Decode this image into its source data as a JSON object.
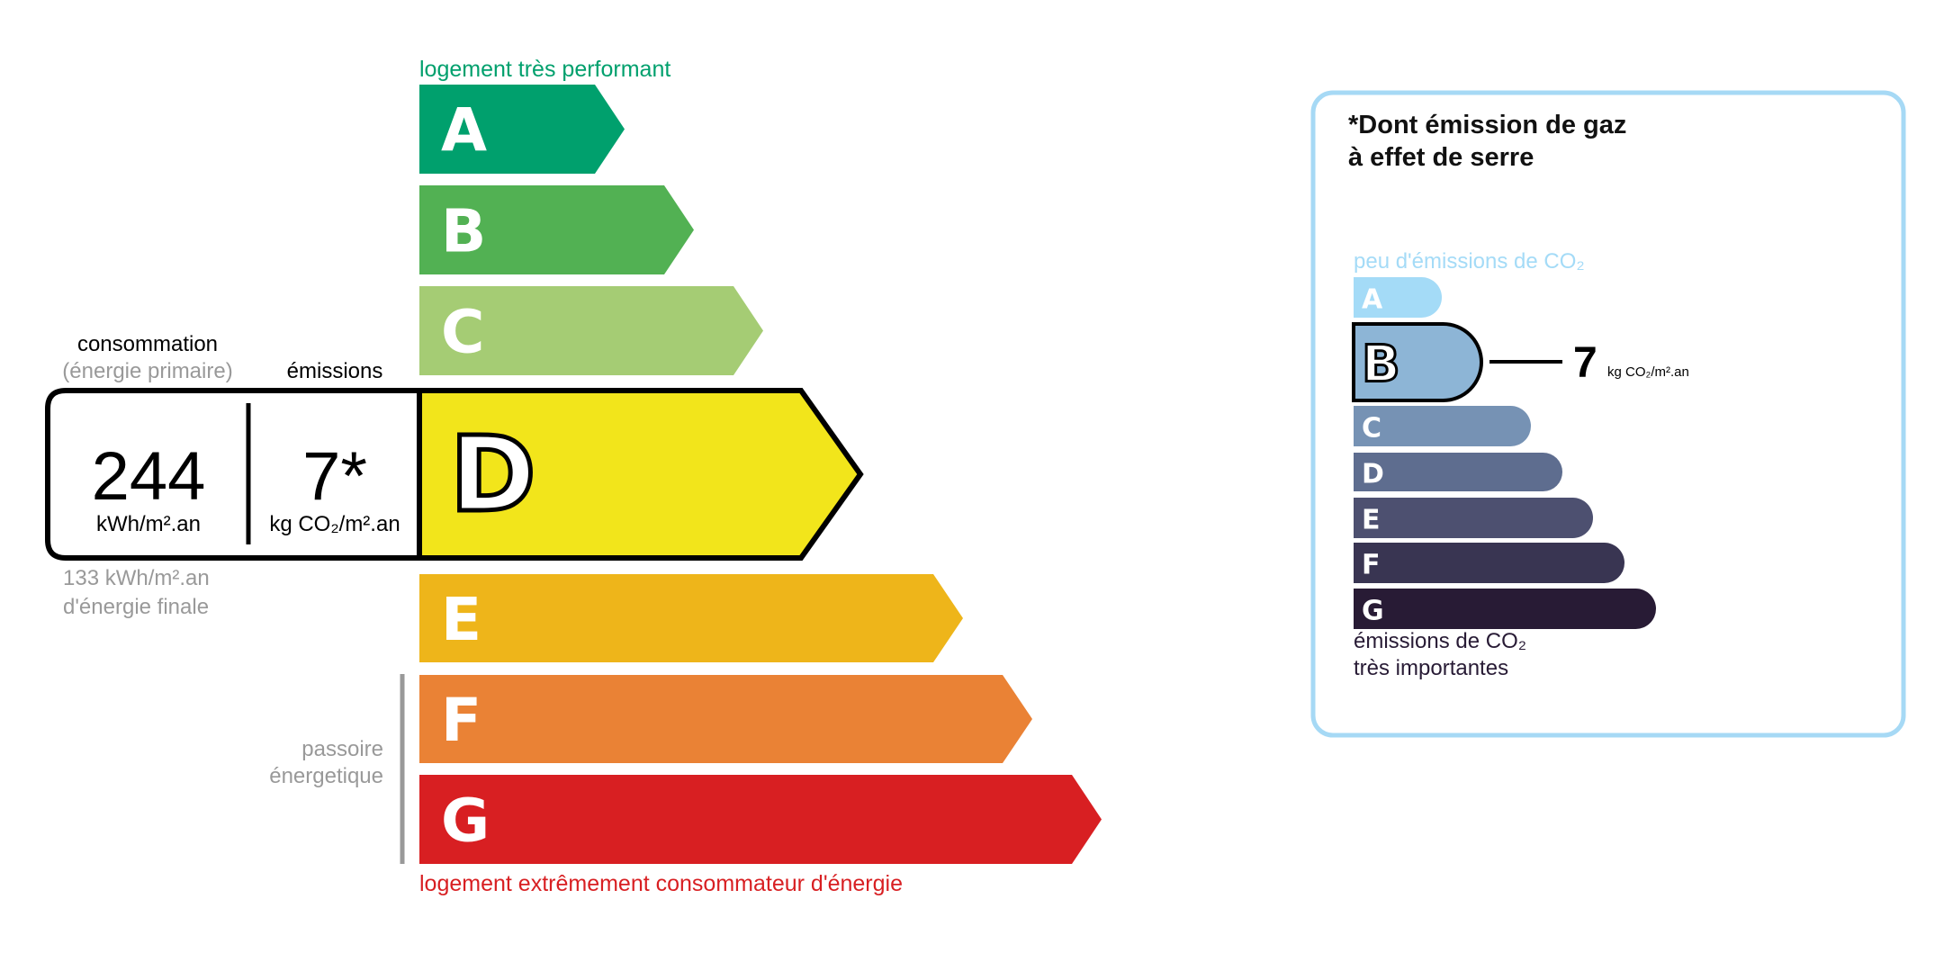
{
  "energy": {
    "top_label": "logement très performant",
    "bottom_label": "logement extrêmement consommateur d'énergie",
    "passoire_label": [
      "passoire",
      "énergetique"
    ],
    "current_class": "D",
    "classes": [
      {
        "letter": "A",
        "color": "#00a06d"
      },
      {
        "letter": "B",
        "color": "#52b153"
      },
      {
        "letter": "C",
        "color": "#a5cc74"
      },
      {
        "letter": "D",
        "color": "#f2e51b"
      },
      {
        "letter": "E",
        "color": "#eeb51a"
      },
      {
        "letter": "F",
        "color": "#ea8235"
      },
      {
        "letter": "G",
        "color": "#d81f22"
      }
    ],
    "consumption_header": "consommation",
    "consumption_sub": "(énergie primaire)",
    "emissions_header": "émissions",
    "consumption_value": "244",
    "consumption_unit": "kWh/m².an",
    "emissions_value": "7*",
    "emissions_unit": "kg CO₂/m².an",
    "final_energy": [
      "133 kWh/m².an",
      "d'énergie finale"
    ]
  },
  "ghg": {
    "title": [
      "*Dont émission de gaz",
      "à effet de serre"
    ],
    "top_label": "peu d'émissions de CO₂",
    "bottom_label": [
      "émissions de CO₂",
      "très importantes"
    ],
    "current_class": "B",
    "value": "7",
    "unit": "kg CO₂/m².an",
    "border_color": "#a6d9f5",
    "classes": [
      {
        "letter": "A",
        "color": "#a4dbf7"
      },
      {
        "letter": "B",
        "color": "#8db5d6"
      },
      {
        "letter": "C",
        "color": "#7692b4"
      },
      {
        "letter": "D",
        "color": "#5e6d8f"
      },
      {
        "letter": "E",
        "color": "#4d5070"
      },
      {
        "letter": "F",
        "color": "#393552"
      },
      {
        "letter": "G",
        "color": "#281b35"
      }
    ]
  }
}
